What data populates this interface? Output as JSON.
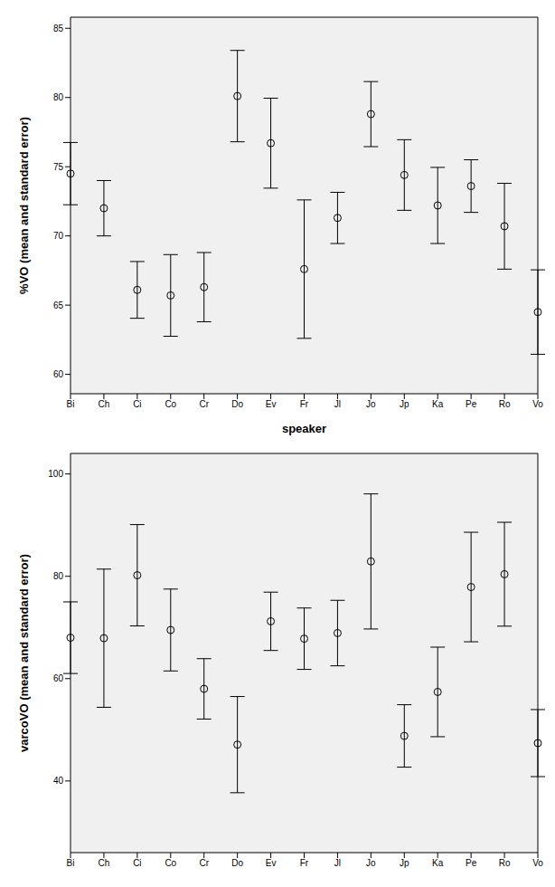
{
  "chart_data": [
    {
      "type": "scatter",
      "x_label": "speaker",
      "y_label": "%VO (mean and standard error)",
      "categories": [
        "Bi",
        "Ch",
        "Ci",
        "Co",
        "Cr",
        "Do",
        "Ev",
        "Fr",
        "Jl",
        "Jo",
        "Jp",
        "Ka",
        "Pe",
        "Ro",
        "Vo"
      ],
      "values": [
        74.5,
        72.0,
        66.1,
        65.7,
        66.3,
        80.1,
        76.7,
        67.6,
        71.3,
        78.8,
        74.4,
        72.2,
        73.6,
        70.7,
        64.5
      ],
      "errors": [
        2.25,
        2.0,
        2.05,
        2.95,
        2.5,
        3.3,
        3.25,
        5.0,
        1.85,
        2.35,
        2.55,
        2.75,
        1.9,
        3.1,
        3.05
      ],
      "ylim": [
        58.6,
        85.8
      ],
      "yticks": [
        60,
        65,
        70,
        75,
        80,
        85
      ],
      "color": "#000000",
      "marker": "circle",
      "grid": false
    },
    {
      "type": "scatter",
      "y_label": "varcoVO (mean and standard error)",
      "categories": [
        "Bi",
        "Ch",
        "Ci",
        "Co",
        "Cr",
        "Do",
        "Ev",
        "Fr",
        "Jl",
        "Jo",
        "Jp",
        "Ka",
        "Pe",
        "Ro",
        "Vo"
      ],
      "values": [
        68.0,
        67.9,
        80.2,
        69.5,
        58.0,
        47.1,
        71.2,
        67.8,
        68.9,
        82.9,
        48.8,
        57.4,
        77.9,
        80.4,
        47.4
      ],
      "errors": [
        7.0,
        13.5,
        9.9,
        8.0,
        5.9,
        9.4,
        5.7,
        6.0,
        6.4,
        13.2,
        6.1,
        8.75,
        10.7,
        10.15,
        6.55
      ],
      "ylim": [
        26,
        104
      ],
      "yticks": [
        40,
        60,
        80,
        100
      ],
      "color": "#000000",
      "marker": "circle",
      "grid": false
    }
  ]
}
